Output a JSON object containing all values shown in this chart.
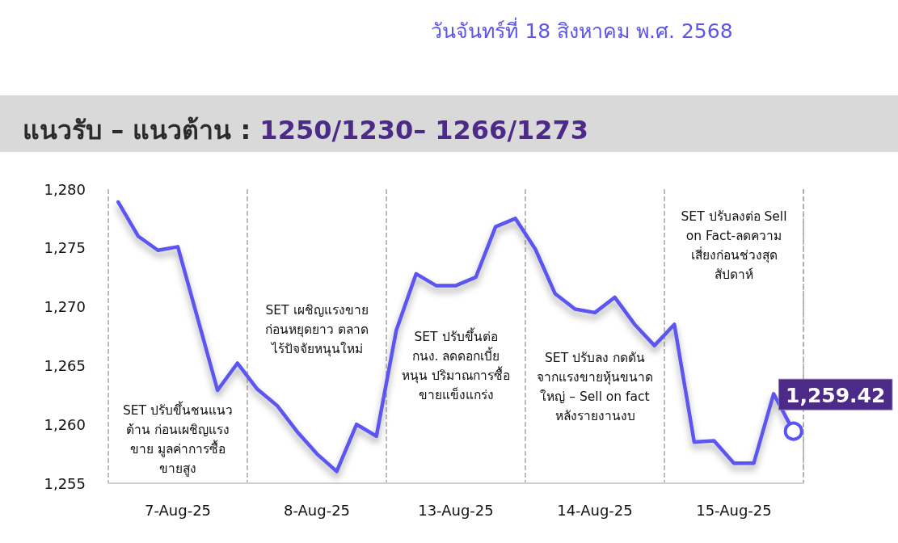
{
  "chart_data": {
    "type": "line",
    "title": "แนวรับ – แนวต้าน : 1250/1230– 1266/1273",
    "subtitle": "วันจันทร์ที่ 18 สิงหาคม พ.ศ. 2568",
    "categories": [
      null,
      null,
      null,
      "7-Aug-25",
      null,
      null,
      null,
      null,
      null,
      null,
      "8-Aug-25",
      null,
      null,
      null,
      null,
      null,
      null,
      "13-Aug-25",
      null,
      null,
      null,
      null,
      null,
      null,
      "14-Aug-25",
      null,
      null,
      null,
      null,
      null,
      null,
      "15-Aug-25",
      null,
      null,
      null
    ],
    "series": [
      {
        "color": "#5b55f0",
        "values": [
          1278.9,
          1276.0,
          1274.8,
          1275.1,
          1269.0,
          1262.9,
          1265.2,
          1263.0,
          1261.6,
          1259.4,
          1257.5,
          1256.0,
          1260.0,
          1259.0,
          1268.0,
          1272.8,
          1271.8,
          1271.8,
          1272.5,
          1276.8,
          1277.5,
          1274.9,
          1271.1,
          1269.8,
          1269.5,
          1270.8,
          1268.5,
          1266.7,
          1268.5,
          1258.5,
          1258.6,
          1256.7,
          1256.7,
          1262.6,
          1259.42
        ],
        "value_labels": [
          null,
          null,
          null,
          null,
          null,
          null,
          null,
          null,
          null,
          null,
          null,
          null,
          null,
          null,
          null,
          null,
          null,
          null,
          null,
          null,
          null,
          null,
          null,
          null,
          null,
          null,
          null,
          null,
          null,
          null,
          null,
          null,
          null,
          null,
          "1,259.42"
        ]
      }
    ],
    "ylim": [
      1255,
      1280
    ],
    "yticks": [
      {
        "value": 1255,
        "label": "1,255"
      },
      {
        "value": 1260,
        "label": "1,260"
      },
      {
        "value": 1265,
        "label": "1,265"
      },
      {
        "value": 1270,
        "label": "1,270"
      },
      {
        "value": 1275,
        "label": "1,275"
      },
      {
        "value": 1280,
        "label": "1,280"
      }
    ],
    "grid": "x",
    "line_style": "solid",
    "annotations": [
      "SET ปรับขึ้นชนแนว\nต้าน ก่อนเผชิญแรง\nขาย มูลค่าการซื้อ\nขายสูง",
      "SET เผชิญแรงขาย\nก่อนหยุดยาว ตลาด\nไร้ปัจจัยหนุนใหม่",
      "SET ปรับขึ้นต่อ\nกนง. ลดดอกเบี้ย\nหนุน ปริมาณการซื้อ\nขายแข็งแกร่ง",
      "SET ปรับลง กดดัน\nจากแรงขายหุ้นขนาด\nใหญ่ – Sell on fact\nหลังรายงานงบ",
      "SET ปรับลงต่อ Sell\non Fact-ลดความ\nเสี่ยงก่อนช่วงสุด\nสัปดาห์"
    ]
  }
}
